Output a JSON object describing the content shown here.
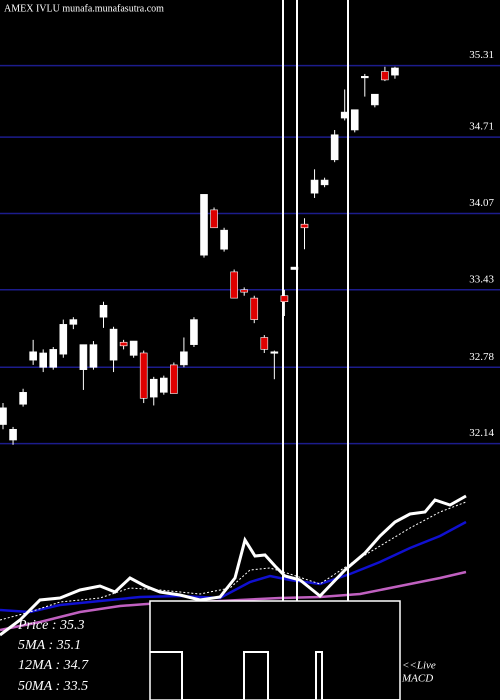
{
  "chart_data": {
    "type": "candlestick",
    "title": "AMEX IVLU munafa.munafasutra.com",
    "ylim": [
      31.6,
      35.86
    ],
    "yticks": [
      35.31,
      34.71,
      34.07,
      33.43,
      32.78,
      32.14
    ],
    "grid": true,
    "grid_color": "#1c1c8c",
    "up_color": "#ffffff",
    "down_color": "#dd0000",
    "open": [
      32.3,
      32.17,
      32.47,
      32.84,
      32.78,
      32.78,
      32.89,
      33.14,
      32.76,
      32.78,
      33.2,
      32.84,
      32.99,
      32.88,
      32.9,
      32.53,
      32.57,
      32.8,
      32.8,
      32.97,
      33.72,
      34.1,
      33.77,
      33.58,
      33.43,
      33.36,
      33.03,
      32.9,
      33.38,
      33.6,
      33.98,
      34.24,
      34.31,
      34.52,
      34.87,
      34.77,
      35.22,
      34.98,
      35.26,
      35.23
    ],
    "high": [
      32.48,
      32.28,
      32.6,
      33.01,
      32.93,
      32.95,
      33.18,
      33.2,
      32.97,
      33.0,
      33.33,
      33.12,
      33.01,
      33.0,
      32.92,
      32.7,
      32.71,
      32.82,
      33.03,
      33.2,
      34.23,
      34.12,
      33.95,
      33.6,
      33.45,
      33.38,
      33.05,
      32.92,
      33.43,
      33.62,
      34.03,
      34.44,
      34.37,
      34.77,
      35.11,
      34.94,
      35.24,
      35.07,
      35.3,
      35.3
    ],
    "low": [
      32.26,
      32.13,
      32.45,
      32.8,
      32.74,
      32.76,
      32.86,
      33.1,
      32.59,
      32.76,
      33.11,
      32.74,
      32.93,
      32.86,
      32.48,
      32.46,
      32.55,
      32.56,
      32.78,
      32.95,
      33.7,
      33.95,
      33.75,
      33.36,
      33.38,
      33.15,
      32.9,
      32.68,
      33.21,
      33.6,
      33.77,
      34.2,
      34.29,
      34.5,
      34.85,
      34.75,
      35.05,
      34.96,
      35.18,
      35.2
    ],
    "close": [
      32.44,
      32.26,
      32.57,
      32.91,
      32.9,
      32.93,
      33.14,
      33.18,
      32.97,
      32.97,
      33.3,
      33.1,
      32.96,
      33.0,
      32.52,
      32.68,
      32.69,
      32.56,
      32.91,
      33.18,
      34.23,
      33.95,
      33.93,
      33.36,
      33.41,
      33.18,
      32.93,
      32.91,
      33.33,
      33.62,
      33.95,
      34.35,
      34.35,
      34.73,
      34.92,
      34.94,
      35.22,
      35.07,
      35.19,
      35.29
    ],
    "legend": [
      "Price : 35.3",
      "5MA : 35.1",
      "12MA : 34.7",
      "50MA : 33.5"
    ],
    "live_label": "<<Live",
    "panel_label": "MACD"
  }
}
